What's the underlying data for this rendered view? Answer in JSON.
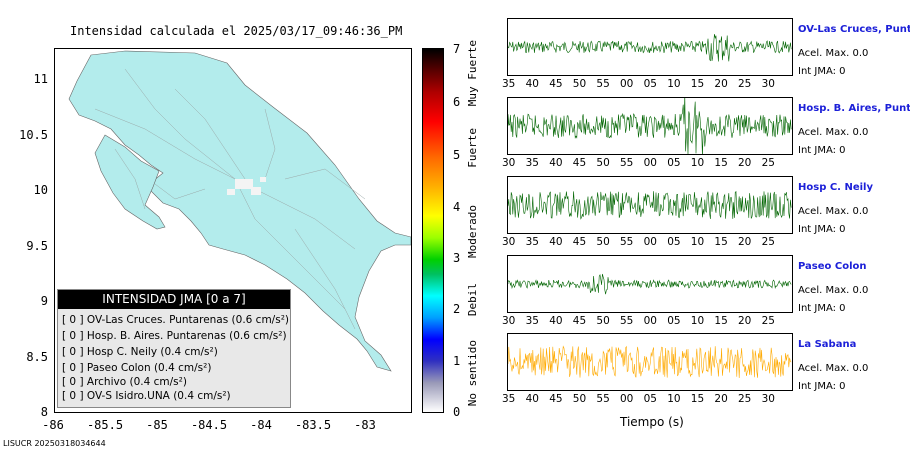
{
  "map": {
    "title": "Intensidad calculada el 2025/03/17_09:46:36_PM",
    "y_ticks": [
      "11",
      "10.5",
      "10",
      "9.5",
      "9",
      "8.5",
      "8"
    ],
    "x_ticks": [
      "-86",
      "-85.5",
      "-85",
      "-84.5",
      "-84",
      "-83.5",
      "-83"
    ],
    "land_color": "#b3ecec"
  },
  "legend": {
    "header": "INTENSIDAD JMA [0 a 7]",
    "rows": [
      "[ 0 ]  OV-Las Cruces. Puntarenas (0.6 cm/s²)",
      "[ 0 ]  Hosp. B. Aires. Puntarenas (0.6 cm/s²)",
      "[ 0 ]  Hosp C. Neily (0.4 cm/s²)",
      "[ 0 ]  Paseo Colon (0.4 cm/s²)",
      "[ 0 ]  Archivo (0.4 cm/s²)",
      "[ 0 ]  OV-S Isidro.UNA (0.4 cm/s²)"
    ]
  },
  "colorbar": {
    "ticks": [
      "7",
      "6",
      "5",
      "4",
      "3",
      "2",
      "1",
      "0"
    ],
    "labels": [
      "Muy Fuerte",
      "Fuerte",
      "Moderado",
      "Debil",
      "No sentido"
    ]
  },
  "stations": [
    {
      "name": "OV-Las Cruces, Puntar",
      "acel": "Acel. Max. 0.0",
      "int": "Int JMA: 0",
      "color": "#006400",
      "ticks": [
        "35",
        "40",
        "45",
        "50",
        "55",
        "00",
        "05",
        "10",
        "15",
        "20",
        "25",
        "30"
      ]
    },
    {
      "name": "Hosp. B. Aires, Puntare",
      "acel": "Acel. Max. 0.0",
      "int": "Int JMA: 0",
      "color": "#006400",
      "ticks": [
        "30",
        "35",
        "40",
        "45",
        "50",
        "55",
        "00",
        "05",
        "10",
        "15",
        "20",
        "25"
      ]
    },
    {
      "name": "Hosp C. Neily",
      "acel": "Acel. Max. 0.0",
      "int": "Int JMA: 0",
      "color": "#006400",
      "ticks": [
        "30",
        "35",
        "40",
        "45",
        "50",
        "55",
        "00",
        "05",
        "10",
        "15",
        "20",
        "25"
      ]
    },
    {
      "name": "Paseo Colon",
      "acel": "Acel. Max. 0.0",
      "int": "Int JMA: 0",
      "color": "#006400",
      "ticks": [
        "30",
        "35",
        "40",
        "45",
        "50",
        "55",
        "00",
        "05",
        "10",
        "15",
        "20",
        "25"
      ]
    },
    {
      "name": "La Sabana",
      "acel": "Acel. Max. 0.0",
      "int": "Int JMA: 0",
      "color": "#ffaa00",
      "ticks": [
        "35",
        "40",
        "45",
        "50",
        "55",
        "00",
        "05",
        "10",
        "15",
        "20",
        "25",
        "30"
      ]
    }
  ],
  "time_axis_title": "Tiempo (s)",
  "footer": "LISUCR 20250318034644"
}
